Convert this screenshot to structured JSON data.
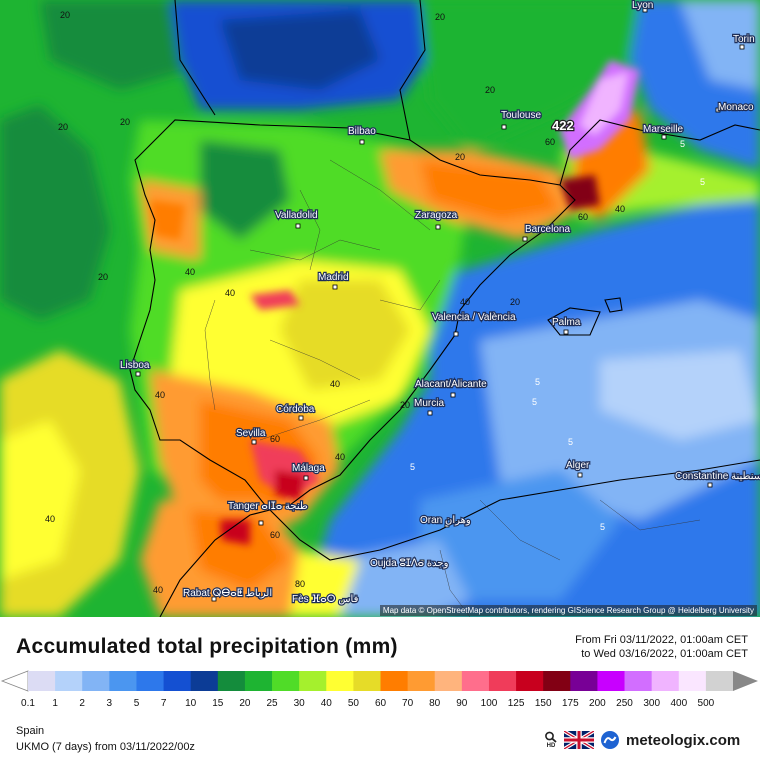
{
  "map": {
    "attribution": "Map data © OpenStreetMap contributors, rendering GIScience Research Group @ Heidelberg University",
    "cities": [
      "Lyon",
      "Torin",
      "Monaco",
      "Marseille",
      "Toulouse",
      "Bilbao",
      "Valladolid",
      "Zaragoza",
      "Barcelona",
      "Madrid",
      "Valencia / València",
      "Palma",
      "Lisboa",
      "Córdoba",
      "Alacant/Alicante",
      "Murcia",
      "Sevilla",
      "Málaga",
      "Alger",
      "Constantine قسنطينة",
      "Tanger ⴰⵏⵊⴰ طنجة",
      "Oran وهران",
      "Oujda ⵓⵊⴷⴰ وجدة",
      "Rabat ⵕⴱⴰⵟ الرباط",
      "Fès ⴼⴰⵙ فاس"
    ],
    "max_value": "422",
    "contour_values": [
      "20",
      "20",
      "20",
      "20",
      "20",
      "20",
      "20",
      "20",
      "20",
      "40",
      "40",
      "40",
      "40",
      "40",
      "40",
      "40",
      "40",
      "40",
      "60",
      "60",
      "60",
      "60",
      "80",
      "5",
      "5",
      "5",
      "5",
      "5",
      "5",
      "5"
    ]
  },
  "legend": {
    "title": "Accumulated total precipitation (mm)",
    "time_from": "From Fri 03/11/2022, 01:00am CET",
    "time_to": "to Wed 03/16/2022, 01:00am CET",
    "ticks": [
      "0.1",
      "1",
      "2",
      "3",
      "5",
      "7",
      "10",
      "15",
      "20",
      "25",
      "30",
      "40",
      "50",
      "60",
      "70",
      "80",
      "90",
      "100",
      "125",
      "150",
      "175",
      "200",
      "250",
      "300",
      "400",
      "500"
    ],
    "colors": [
      "#dcdcf4",
      "#b4d2fa",
      "#82b4f5",
      "#4b96f0",
      "#2d78eb",
      "#1450d2",
      "#0c3c96",
      "#148c3c",
      "#1eb432",
      "#50dc28",
      "#a5f02d",
      "#ffff32",
      "#e6dc28",
      "#ff7d00",
      "#ff9b32",
      "#ffb47d",
      "#ff6e8c",
      "#f03c5a",
      "#c8001e",
      "#820014",
      "#780096",
      "#c800ff",
      "#d26eff",
      "#f0b4ff",
      "#fae6ff",
      "#d2d2d2"
    ],
    "region": "Spain",
    "model": "UKMO (7 days) from 03/11/2022/00z",
    "brand": "meteologix.com",
    "hd_label": "HD"
  }
}
